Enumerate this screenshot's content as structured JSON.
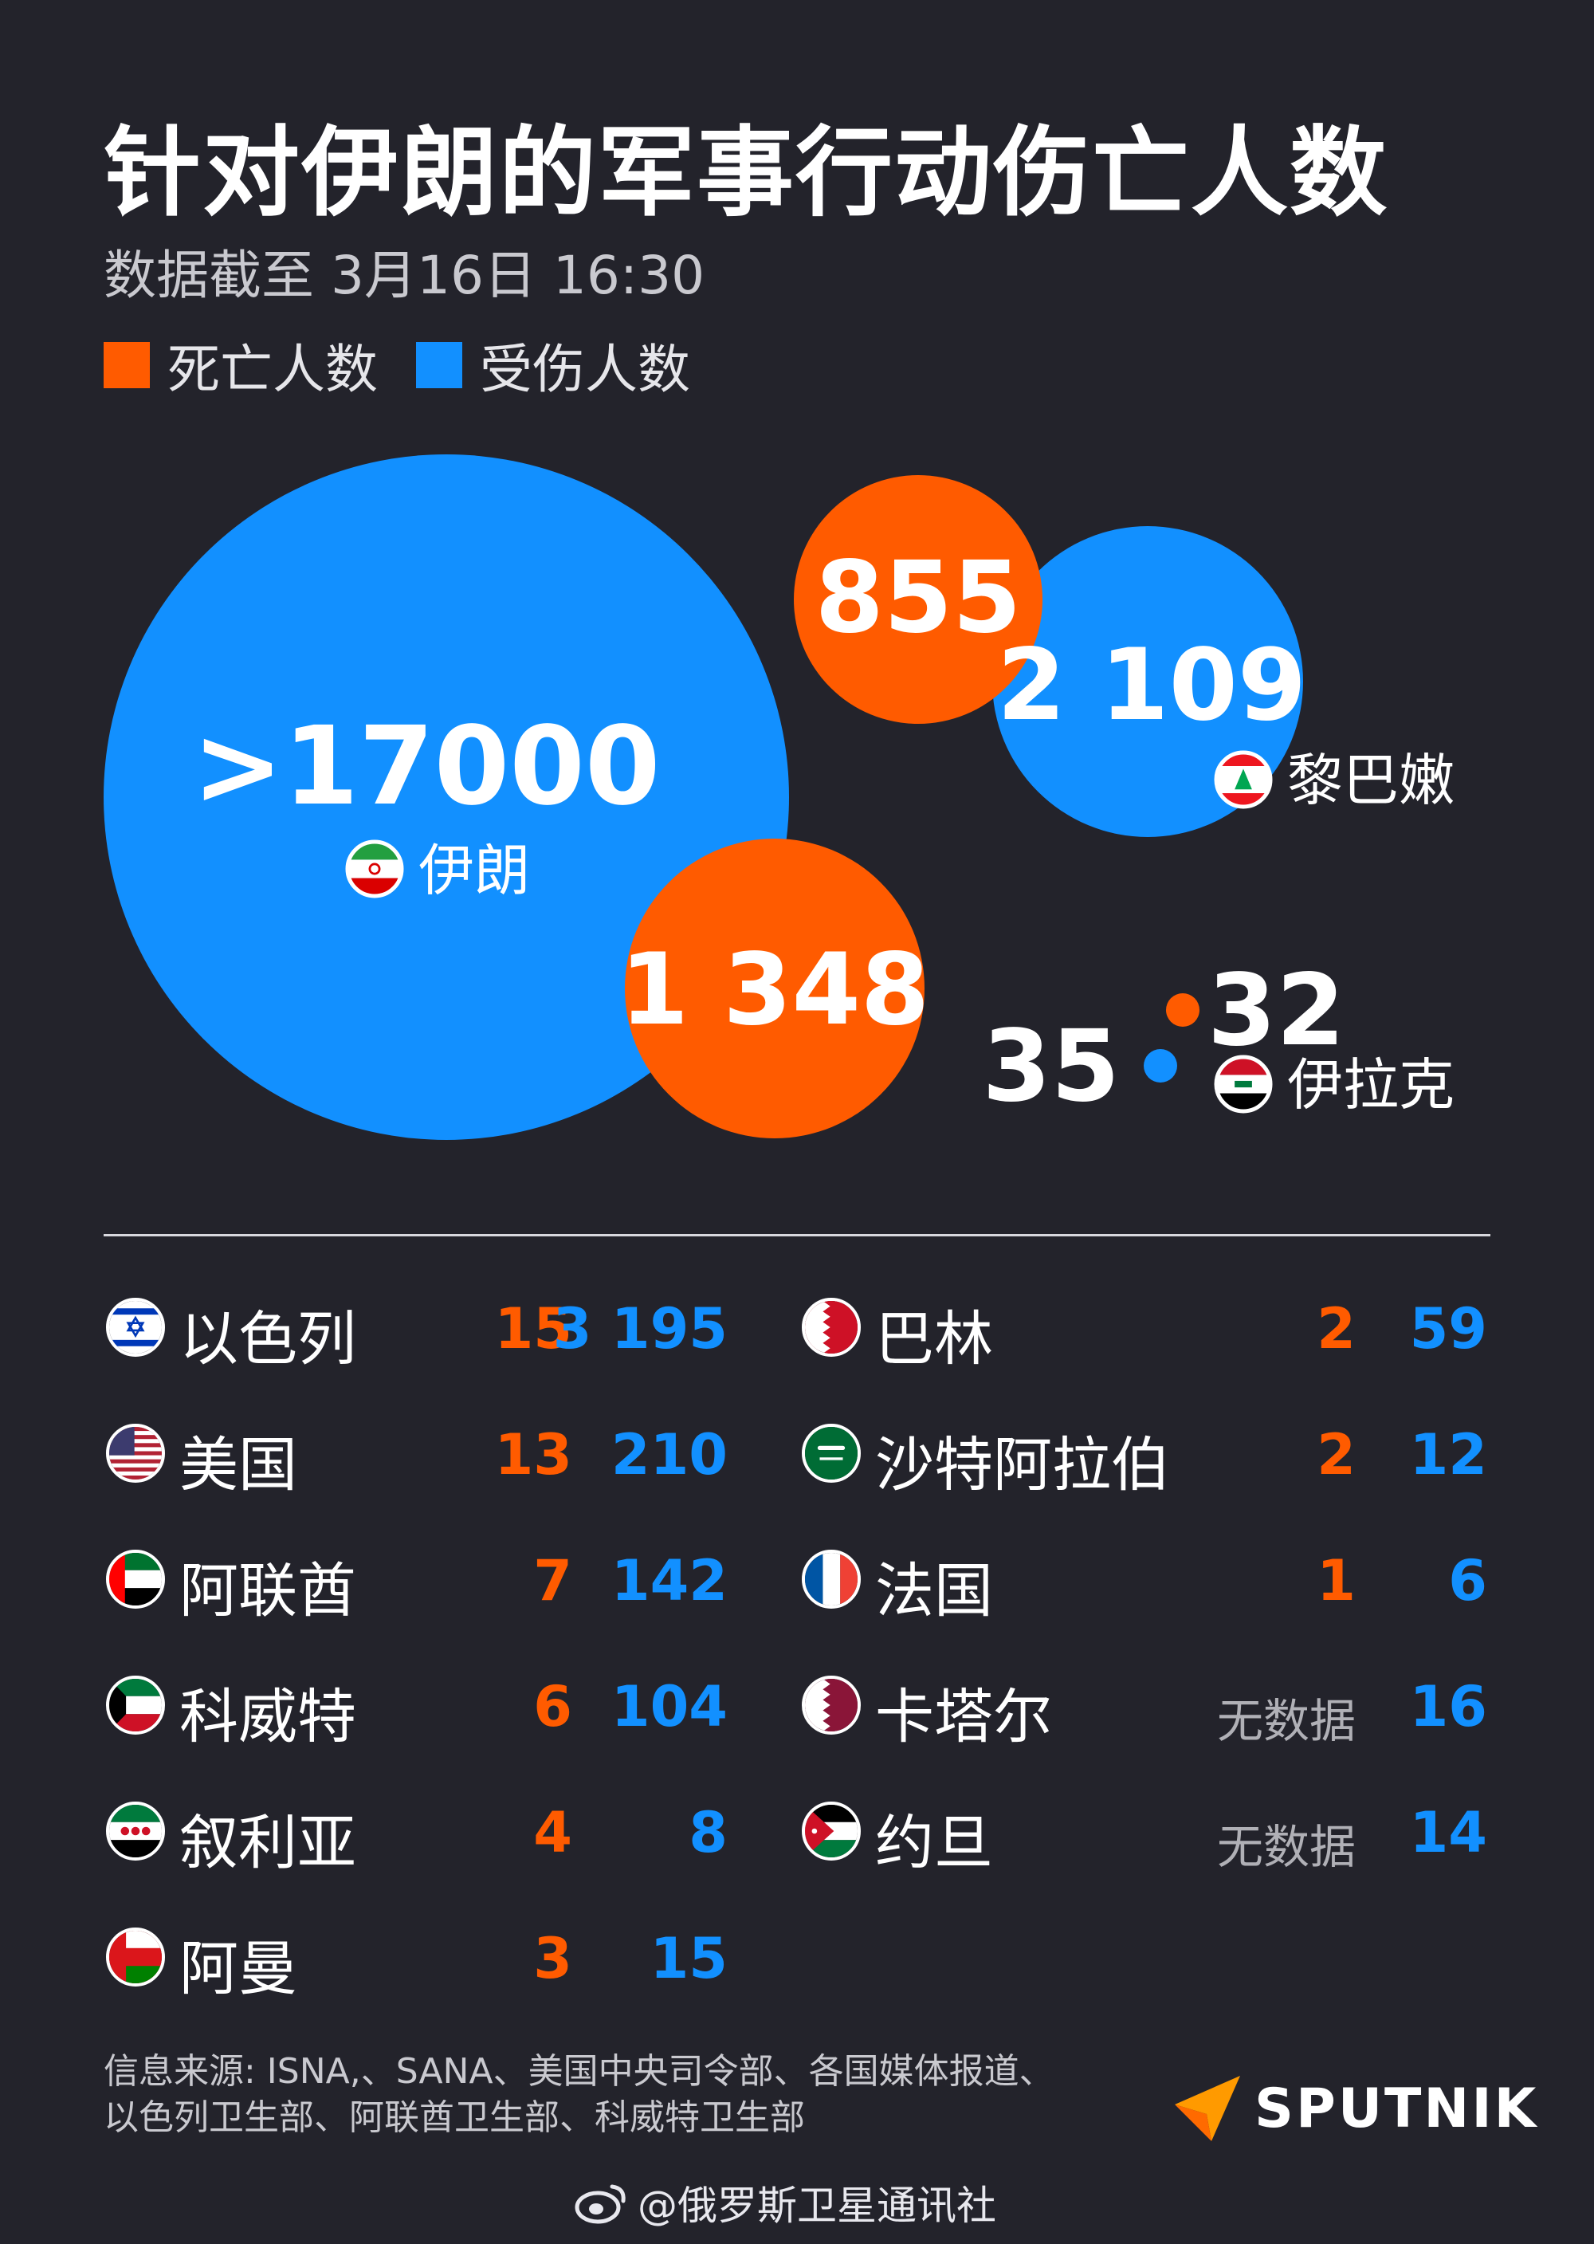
{
  "title": "针对伊朗的军事行动伤亡人数",
  "subtitle": "数据截至 3月16日 16:30",
  "legend": {
    "deaths": "死亡人数",
    "injured": "受伤人数"
  },
  "colors": {
    "deaths": "#ff5b00",
    "injured": "#1290ff",
    "background": "#23232b"
  },
  "chart_data": {
    "type": "bubble",
    "featured": [
      {
        "country": "伊朗",
        "deaths": 1348,
        "deaths_label": "1 348",
        "injured": 17000,
        "injured_label": ">17000",
        "flag": "iran-flag-icon"
      },
      {
        "country": "黎巴嫩",
        "deaths": 855,
        "deaths_label": "855",
        "injured": 2109,
        "injured_label": "2 109",
        "flag": "lebanon-flag-icon"
      },
      {
        "country": "伊拉克",
        "deaths": 32,
        "deaths_label": "32",
        "injured": 35,
        "injured_label": "35",
        "flag": "iraq-flag-icon"
      }
    ],
    "table": {
      "left": [
        {
          "country": "以色列",
          "deaths": "15",
          "injured": "3 195",
          "flag": "israel-flag-icon"
        },
        {
          "country": "美国",
          "deaths": "13",
          "injured": "210",
          "flag": "usa-flag-icon"
        },
        {
          "country": "阿联酋",
          "deaths": "7",
          "injured": "142",
          "flag": "uae-flag-icon"
        },
        {
          "country": "科威特",
          "deaths": "6",
          "injured": "104",
          "flag": "kuwait-flag-icon"
        },
        {
          "country": "叙利亚",
          "deaths": "4",
          "injured": "8",
          "flag": "syria-flag-icon"
        },
        {
          "country": "阿曼",
          "deaths": "3",
          "injured": "15",
          "flag": "oman-flag-icon"
        }
      ],
      "right": [
        {
          "country": "巴林",
          "deaths": "2",
          "injured": "59",
          "flag": "bahrain-flag-icon"
        },
        {
          "country": "沙特阿拉伯",
          "deaths": "2",
          "injured": "12",
          "flag": "saudi-flag-icon"
        },
        {
          "country": "法国",
          "deaths": "1",
          "injured": "6",
          "flag": "france-flag-icon"
        },
        {
          "country": "卡塔尔",
          "deaths": "无数据",
          "injured": "16",
          "flag": "qatar-flag-icon"
        },
        {
          "country": "约旦",
          "deaths": "无数据",
          "injured": "14",
          "flag": "jordan-flag-icon"
        }
      ]
    }
  },
  "source": {
    "line1": "信息来源: ISNA,、SANA、美国中央司令部、各国媒体报道、",
    "line2": "以色列卫生部、阿联酋卫生部、科威特卫生部"
  },
  "logo": {
    "text": "SPUTNIK",
    "icon": "sputnik-logo-icon"
  },
  "watermark": {
    "text": "@俄罗斯卫星通讯社",
    "icon": "weibo-icon"
  }
}
